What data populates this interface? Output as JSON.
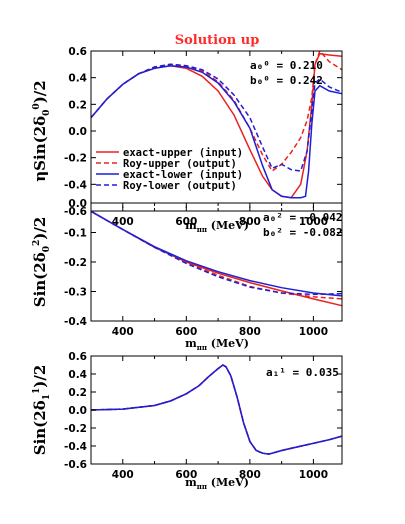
{
  "figure": {
    "title": "Solution up",
    "title_color": "#ff2a2a"
  },
  "legend": {
    "placement": "lower-left of top panel",
    "items": [
      {
        "label": "exact-upper (input)",
        "color": "#e8231e",
        "dash": false
      },
      {
        "label": "Roy-upper (output)",
        "color": "#e8231e",
        "dash": true
      },
      {
        "label": "exact-lower (input)",
        "color": "#1f1fd6",
        "dash": false
      },
      {
        "label": "Roy-lower (output)",
        "color": "#1f1fd6",
        "dash": true
      }
    ]
  },
  "chart_data": [
    {
      "type": "line",
      "panel": "top",
      "ylabel": "ηSin(2δ_0^0)/2",
      "xlabel": "m_ππ (MeV)",
      "xlim": [
        300,
        1090
      ],
      "ylim": [
        -0.6,
        0.6
      ],
      "xticks": [
        400,
        600,
        800,
        1000
      ],
      "yticks": [
        -0.6,
        -0.4,
        -0.2,
        0.0,
        0.2,
        0.4,
        0.6
      ],
      "ytick_labels": [
        "-0.6",
        "-0.4",
        "-0.2",
        "0.0",
        "0.2",
        "0.4",
        "0.6"
      ],
      "annotations": [
        "a₀⁰ = 0.210",
        "b₀⁰ = 0.242"
      ],
      "series": [
        {
          "name": "exact-upper (input)",
          "color": "#e8231e",
          "dash": false,
          "x": [
            300,
            350,
            400,
            450,
            500,
            550,
            600,
            650,
            700,
            750,
            800,
            840,
            870,
            900,
            930,
            960,
            980,
            995,
            1005,
            1020,
            1050,
            1090
          ],
          "y": [
            0.1,
            0.24,
            0.35,
            0.43,
            0.47,
            0.49,
            0.47,
            0.41,
            0.3,
            0.12,
            -0.14,
            -0.34,
            -0.44,
            -0.49,
            -0.5,
            -0.4,
            -0.15,
            0.2,
            0.5,
            0.58,
            0.57,
            0.56
          ]
        },
        {
          "name": "Roy-upper (output)",
          "color": "#e8231e",
          "dash": true,
          "x": [
            300,
            350,
            400,
            450,
            500,
            550,
            600,
            650,
            700,
            750,
            800,
            840,
            870,
            900,
            930,
            960,
            980,
            995,
            1005,
            1020,
            1050,
            1090
          ],
          "y": [
            0.1,
            0.24,
            0.35,
            0.43,
            0.48,
            0.5,
            0.49,
            0.45,
            0.37,
            0.23,
            0.02,
            -0.18,
            -0.3,
            -0.25,
            -0.16,
            -0.05,
            0.08,
            0.25,
            0.5,
            0.6,
            0.52,
            0.46
          ]
        },
        {
          "name": "exact-lower (input)",
          "color": "#1f1fd6",
          "dash": false,
          "x": [
            300,
            350,
            400,
            450,
            500,
            550,
            600,
            650,
            700,
            750,
            800,
            840,
            870,
            900,
            930,
            960,
            975,
            985,
            995,
            1005,
            1020,
            1050,
            1090
          ],
          "y": [
            0.1,
            0.24,
            0.35,
            0.43,
            0.47,
            0.49,
            0.48,
            0.44,
            0.36,
            0.22,
            0.02,
            -0.26,
            -0.44,
            -0.49,
            -0.5,
            -0.5,
            -0.49,
            -0.3,
            0.05,
            0.3,
            0.34,
            0.3,
            0.28
          ]
        },
        {
          "name": "Roy-lower (output)",
          "color": "#1f1fd6",
          "dash": true,
          "x": [
            300,
            350,
            400,
            450,
            500,
            550,
            600,
            650,
            700,
            750,
            800,
            840,
            870,
            900,
            930,
            960,
            980,
            995,
            1005,
            1020,
            1050,
            1090
          ],
          "y": [
            0.1,
            0.24,
            0.35,
            0.43,
            0.48,
            0.5,
            0.49,
            0.46,
            0.39,
            0.27,
            0.1,
            -0.12,
            -0.28,
            -0.25,
            -0.29,
            -0.3,
            -0.15,
            0.15,
            0.36,
            0.39,
            0.33,
            0.29
          ]
        }
      ]
    },
    {
      "type": "line",
      "panel": "middle",
      "ylabel": "Sin(2δ_0^2)/2",
      "xlabel": "m_ππ (MeV)",
      "xlim": [
        300,
        1090
      ],
      "ylim": [
        -0.4,
        0.0
      ],
      "xticks": [
        400,
        600,
        800,
        1000
      ],
      "yticks": [
        -0.4,
        -0.3,
        -0.2,
        -0.1,
        0.0
      ],
      "ytick_labels": [
        "-0.4",
        "-0.3",
        "-0.2",
        "-0.1",
        "0.0"
      ],
      "annotations": [
        "a₀² = -0.042",
        "b₀² = -0.082"
      ],
      "series": [
        {
          "name": "exact-upper (input)",
          "color": "#e8231e",
          "dash": false,
          "x": [
            300,
            400,
            500,
            600,
            700,
            800,
            900,
            1000,
            1090
          ],
          "y": [
            -0.028,
            -0.09,
            -0.15,
            -0.2,
            -0.238,
            -0.27,
            -0.298,
            -0.325,
            -0.348
          ]
        },
        {
          "name": "Roy-upper (output)",
          "color": "#e8231e",
          "dash": true,
          "x": [
            300,
            400,
            500,
            600,
            700,
            800,
            900,
            1000,
            1090
          ],
          "y": [
            -0.028,
            -0.09,
            -0.15,
            -0.203,
            -0.245,
            -0.283,
            -0.305,
            -0.318,
            -0.325
          ]
        },
        {
          "name": "exact-lower (input)",
          "color": "#1f1fd6",
          "dash": false,
          "x": [
            300,
            400,
            500,
            600,
            700,
            800,
            900,
            1000,
            1090
          ],
          "y": [
            -0.028,
            -0.09,
            -0.148,
            -0.196,
            -0.233,
            -0.263,
            -0.287,
            -0.305,
            -0.315
          ]
        },
        {
          "name": "Roy-lower (output)",
          "color": "#1f1fd6",
          "dash": true,
          "x": [
            300,
            400,
            500,
            600,
            700,
            800,
            900,
            1000,
            1090
          ],
          "y": [
            -0.028,
            -0.09,
            -0.15,
            -0.205,
            -0.25,
            -0.285,
            -0.305,
            -0.31,
            -0.307
          ]
        }
      ]
    },
    {
      "type": "line",
      "panel": "bottom",
      "ylabel": "Sin(2δ_1^1)/2",
      "xlabel": "m_ππ (MeV)",
      "xlim": [
        300,
        1090
      ],
      "ylim": [
        -0.6,
        0.6
      ],
      "xticks": [
        400,
        600,
        800,
        1000
      ],
      "yticks": [
        -0.6,
        -0.4,
        -0.2,
        0.0,
        0.2,
        0.4,
        0.6
      ],
      "ytick_labels": [
        "-0.6",
        "-0.4",
        "-0.2",
        "0.0",
        "0.2",
        "0.4",
        "0.6"
      ],
      "annotations": [
        "a₁¹ = 0.035"
      ],
      "series": [
        {
          "name": "exact-upper (input)",
          "color": "#e8231e",
          "dash": false,
          "x": [
            300,
            400,
            500,
            550,
            600,
            640,
            670,
            700,
            715,
            725,
            740,
            760,
            780,
            800,
            820,
            840,
            860,
            880,
            900,
            950,
            1000,
            1050,
            1090
          ],
          "y": [
            0.0,
            0.01,
            0.05,
            0.1,
            0.18,
            0.27,
            0.37,
            0.46,
            0.5,
            0.48,
            0.38,
            0.14,
            -0.14,
            -0.35,
            -0.45,
            -0.48,
            -0.49,
            -0.47,
            -0.45,
            -0.41,
            -0.37,
            -0.33,
            -0.29
          ]
        },
        {
          "name": "Roy-upper (output)",
          "color": "#e8231e",
          "dash": true,
          "x": [
            300,
            400,
            500,
            550,
            600,
            640,
            670,
            700,
            715,
            725,
            740,
            760,
            780,
            800,
            820,
            840,
            860,
            880,
            900,
            950,
            1000,
            1050,
            1090
          ],
          "y": [
            0.0,
            0.01,
            0.05,
            0.1,
            0.18,
            0.27,
            0.37,
            0.46,
            0.5,
            0.48,
            0.38,
            0.14,
            -0.14,
            -0.35,
            -0.45,
            -0.48,
            -0.49,
            -0.47,
            -0.45,
            -0.41,
            -0.37,
            -0.33,
            -0.29
          ]
        },
        {
          "name": "exact-lower (input)",
          "color": "#1f1fd6",
          "dash": false,
          "x": [
            300,
            400,
            500,
            550,
            600,
            640,
            670,
            700,
            715,
            725,
            740,
            760,
            780,
            800,
            820,
            840,
            860,
            880,
            900,
            950,
            1000,
            1050,
            1090
          ],
          "y": [
            0.0,
            0.01,
            0.05,
            0.1,
            0.18,
            0.27,
            0.37,
            0.46,
            0.5,
            0.48,
            0.38,
            0.14,
            -0.14,
            -0.35,
            -0.45,
            -0.48,
            -0.49,
            -0.47,
            -0.45,
            -0.41,
            -0.37,
            -0.33,
            -0.29
          ]
        },
        {
          "name": "Roy-lower (output)",
          "color": "#1f1fd6",
          "dash": true,
          "x": [
            300,
            400,
            500,
            550,
            600,
            640,
            670,
            700,
            715,
            725,
            740,
            760,
            780,
            800,
            820,
            840,
            860,
            880,
            900,
            950,
            1000,
            1050,
            1090
          ],
          "y": [
            0.0,
            0.01,
            0.05,
            0.1,
            0.18,
            0.27,
            0.37,
            0.46,
            0.5,
            0.48,
            0.38,
            0.14,
            -0.14,
            -0.35,
            -0.45,
            -0.48,
            -0.49,
            -0.47,
            -0.45,
            -0.41,
            -0.37,
            -0.33,
            -0.29
          ]
        }
      ]
    }
  ]
}
